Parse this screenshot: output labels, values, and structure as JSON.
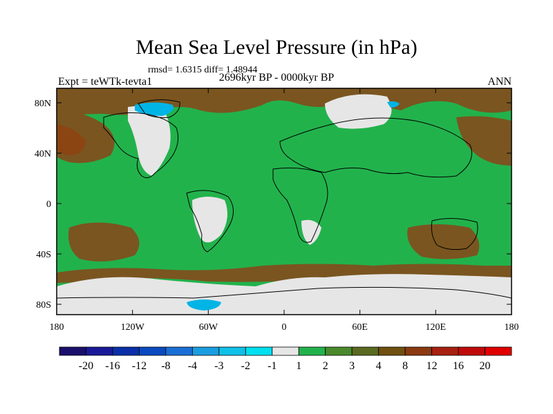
{
  "map": {
    "title": "Mean Sea Level Pressure (in hPa)",
    "stats_line": "rmsd= 1.6315 diff= 1.48944",
    "period": "2696kyr BP - 0000kyr BP",
    "experiment": "Expt = teWTk-tevta1",
    "season": "ANN",
    "lat_labels": [
      "80N",
      "40N",
      "0",
      "40S",
      "80S"
    ],
    "lon_labels": [
      "180",
      "120W",
      "60W",
      "0",
      "60E",
      "120E",
      "180"
    ],
    "colors": {
      "background_field": "#22b24c",
      "neutral": "#e6e6e6",
      "brown_light": "#4f7a28",
      "brown": "#7a5520",
      "brown_dark": "#8b4513",
      "cyan": "#00b4e6",
      "coast": "#000000"
    }
  },
  "colorbar": {
    "labels": [
      "-20",
      "-16",
      "-12",
      "-8",
      "-4",
      "-3",
      "-2",
      "-1",
      "1",
      "2",
      "3",
      "4",
      "8",
      "12",
      "16",
      "20"
    ],
    "colors": [
      "#1a0f6b",
      "#1a1a99",
      "#0a2fa8",
      "#0a4bc0",
      "#1a6fd6",
      "#1a9ee0",
      "#10c0e8",
      "#00e0f0",
      "#e6e6e6",
      "#22b24c",
      "#4a8a2c",
      "#5a6a20",
      "#705010",
      "#8b3a10",
      "#a82010",
      "#c00a0a",
      "#e00000"
    ]
  }
}
